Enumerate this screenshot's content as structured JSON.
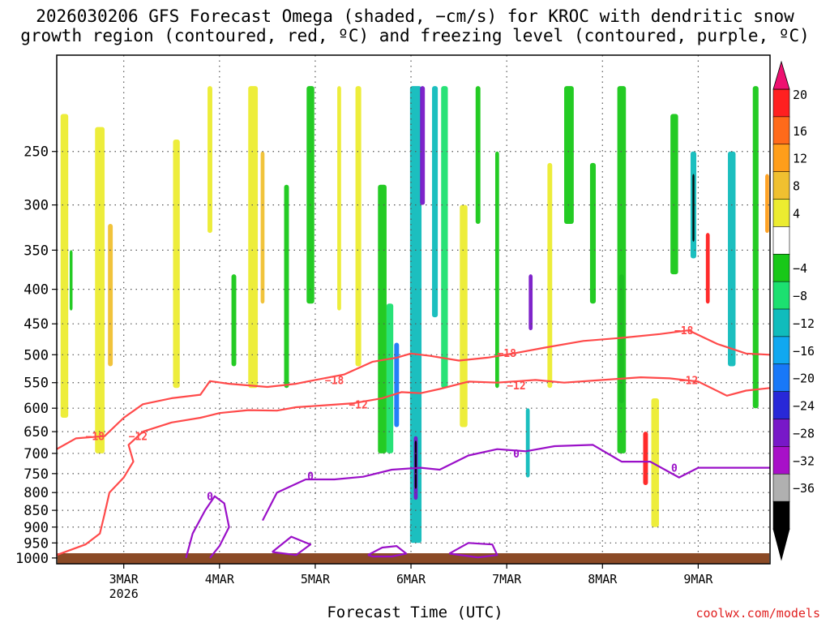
{
  "title_line1": "2026030206 GFS Forecast Omega (shaded, −cm/s) for KROC with dendritic snow",
  "title_line2": "growth region (contoured, red, ºC) and freezing level (contoured, purple, ºC)",
  "xlabel": "Forecast Time (UTC)",
  "credit": "coolwx.com/models",
  "colors": {
    "ground": "#8b4a26",
    "dgz": "#ff4a4a",
    "freezing": "#9a10c8",
    "grid": "#555555"
  },
  "chart_data": {
    "type": "heatmap",
    "title": "2026030206 GFS Forecast Omega (shaded, −cm/s) for KROC with dendritic snow growth region (contoured, red, ºC) and freezing level (contoured, purple, ºC)",
    "xlabel": "Forecast Time (UTC)",
    "ylabel": "",
    "x_range_days": [
      2.3,
      9.75
    ],
    "y_pressure_range_hPa": [
      1020,
      180
    ],
    "y_ticks": [
      250,
      300,
      350,
      400,
      450,
      500,
      550,
      600,
      650,
      700,
      750,
      800,
      850,
      900,
      950,
      1000
    ],
    "x_ticks": [
      {
        "label": "3MAR",
        "sublabel": "2026",
        "day": 3
      },
      {
        "label": "4MAR",
        "sublabel": "",
        "day": 4
      },
      {
        "label": "5MAR",
        "sublabel": "",
        "day": 5
      },
      {
        "label": "6MAR",
        "sublabel": "",
        "day": 6
      },
      {
        "label": "7MAR",
        "sublabel": "",
        "day": 7
      },
      {
        "label": "8MAR",
        "sublabel": "",
        "day": 8
      },
      {
        "label": "9MAR",
        "sublabel": "",
        "day": 9
      }
    ],
    "colorbar": {
      "labels": [
        "20",
        "16",
        "12",
        "8",
        "4",
        "−4",
        "−8",
        "−12",
        "−16",
        "−20",
        "−24",
        "−28",
        "−32",
        "−36"
      ],
      "colors": [
        "#ff2020",
        "#ff6a1a",
        "#ff9e1a",
        "#f0c030",
        "#ecec30",
        "#ffffff",
        "#18c818",
        "#1ce070",
        "#10bcbc",
        "#10a8f0",
        "#1878f8",
        "#2828d8",
        "#7818c8",
        "#a810c8",
        "#b0b0b0",
        "#000000"
      ],
      "top_arrow": "#ee1170",
      "bottom_arrow": "#000000"
    },
    "shading_columns": [
      {
        "day": 2.38,
        "p_top": 220,
        "p_bot": 620,
        "w": 0.08,
        "c": "#ecec30"
      },
      {
        "day": 2.45,
        "p_top": 350,
        "p_bot": 430,
        "w": 0.03,
        "c": "#18c818"
      },
      {
        "day": 2.75,
        "p_top": 230,
        "p_bot": 700,
        "w": 0.1,
        "c": "#ecec30"
      },
      {
        "day": 2.86,
        "p_top": 320,
        "p_bot": 520,
        "w": 0.05,
        "c": "#f0c030"
      },
      {
        "day": 3.55,
        "p_top": 240,
        "p_bot": 560,
        "w": 0.07,
        "c": "#ecec30"
      },
      {
        "day": 3.9,
        "p_top": 200,
        "p_bot": 330,
        "w": 0.05,
        "c": "#ecec30"
      },
      {
        "day": 4.15,
        "p_top": 380,
        "p_bot": 520,
        "w": 0.05,
        "c": "#18c818"
      },
      {
        "day": 4.35,
        "p_top": 200,
        "p_bot": 560,
        "w": 0.1,
        "c": "#ecec30"
      },
      {
        "day": 4.45,
        "p_top": 250,
        "p_bot": 420,
        "w": 0.04,
        "c": "#f0c030"
      },
      {
        "day": 4.7,
        "p_top": 280,
        "p_bot": 560,
        "w": 0.05,
        "c": "#18c818"
      },
      {
        "day": 4.95,
        "p_top": 200,
        "p_bot": 420,
        "w": 0.08,
        "c": "#18c818"
      },
      {
        "day": 5.25,
        "p_top": 200,
        "p_bot": 430,
        "w": 0.04,
        "c": "#ecec30"
      },
      {
        "day": 5.45,
        "p_top": 200,
        "p_bot": 520,
        "w": 0.06,
        "c": "#ecec30"
      },
      {
        "day": 5.7,
        "p_top": 280,
        "p_bot": 700,
        "w": 0.09,
        "c": "#18c818"
      },
      {
        "day": 5.78,
        "p_top": 420,
        "p_bot": 700,
        "w": 0.07,
        "c": "#1ce070"
      },
      {
        "day": 5.85,
        "p_top": 480,
        "p_bot": 640,
        "w": 0.05,
        "c": "#1878f8"
      },
      {
        "day": 6.05,
        "p_top": 200,
        "p_bot": 950,
        "w": 0.12,
        "c": "#10bcbc"
      },
      {
        "day": 6.05,
        "p_top": 660,
        "p_bot": 820,
        "w": 0.04,
        "c": "#7818c8"
      },
      {
        "day": 6.05,
        "p_top": 670,
        "p_bot": 790,
        "w": 0.02,
        "c": "#000000"
      },
      {
        "day": 6.12,
        "p_top": 200,
        "p_bot": 300,
        "w": 0.05,
        "c": "#7818c8"
      },
      {
        "day": 6.25,
        "p_top": 200,
        "p_bot": 440,
        "w": 0.06,
        "c": "#10bcbc"
      },
      {
        "day": 6.35,
        "p_top": 200,
        "p_bot": 560,
        "w": 0.07,
        "c": "#1ce070"
      },
      {
        "day": 6.55,
        "p_top": 300,
        "p_bot": 640,
        "w": 0.08,
        "c": "#ecec30"
      },
      {
        "day": 6.7,
        "p_top": 200,
        "p_bot": 320,
        "w": 0.05,
        "c": "#18c818"
      },
      {
        "day": 6.9,
        "p_top": 250,
        "p_bot": 560,
        "w": 0.04,
        "c": "#18c818"
      },
      {
        "day": 7.25,
        "p_top": 380,
        "p_bot": 460,
        "w": 0.04,
        "c": "#7818c8"
      },
      {
        "day": 7.22,
        "p_top": 600,
        "p_bot": 760,
        "w": 0.04,
        "c": "#10bcbc"
      },
      {
        "day": 7.45,
        "p_top": 260,
        "p_bot": 560,
        "w": 0.05,
        "c": "#ecec30"
      },
      {
        "day": 7.65,
        "p_top": 200,
        "p_bot": 320,
        "w": 0.1,
        "c": "#18c818"
      },
      {
        "day": 7.9,
        "p_top": 260,
        "p_bot": 420,
        "w": 0.06,
        "c": "#18c818"
      },
      {
        "day": 8.2,
        "p_top": 380,
        "p_bot": 590,
        "w": 0.05,
        "c": "#7818c8"
      },
      {
        "day": 8.2,
        "p_top": 200,
        "p_bot": 700,
        "w": 0.09,
        "c": "#18c818"
      },
      {
        "day": 8.45,
        "p_top": 650,
        "p_bot": 780,
        "w": 0.05,
        "c": "#ff2020"
      },
      {
        "day": 8.55,
        "p_top": 580,
        "p_bot": 900,
        "w": 0.08,
        "c": "#ecec30"
      },
      {
        "day": 8.75,
        "p_top": 220,
        "p_bot": 380,
        "w": 0.08,
        "c": "#18c818"
      },
      {
        "day": 8.95,
        "p_top": 250,
        "p_bot": 360,
        "w": 0.06,
        "c": "#10bcbc"
      },
      {
        "day": 8.95,
        "p_top": 270,
        "p_bot": 340,
        "w": 0.02,
        "c": "#000000"
      },
      {
        "day": 9.1,
        "p_top": 330,
        "p_bot": 420,
        "w": 0.04,
        "c": "#ff2020"
      },
      {
        "day": 9.35,
        "p_top": 250,
        "p_bot": 520,
        "w": 0.08,
        "c": "#10bcbc"
      },
      {
        "day": 9.6,
        "p_top": 200,
        "p_bot": 600,
        "w": 0.06,
        "c": "#18c818"
      },
      {
        "day": 9.72,
        "p_top": 270,
        "p_bot": 330,
        "w": 0.04,
        "c": "#ff9e1a"
      }
    ],
    "dgz_contours": [
      {
        "label": "−18",
        "label_pos": [
          {
            "day": 2.7,
            "p": 660
          },
          {
            "day": 5.2,
            "p": 545
          },
          {
            "day": 7.0,
            "p": 497
          },
          {
            "day": 8.85,
            "p": 460
          }
        ],
        "points": [
          [
            2.3,
            690
          ],
          [
            2.5,
            665
          ],
          [
            2.8,
            660
          ],
          [
            3.0,
            620
          ],
          [
            3.2,
            592
          ],
          [
            3.5,
            580
          ],
          [
            3.8,
            573
          ],
          [
            3.9,
            547
          ],
          [
            4.1,
            552
          ],
          [
            4.5,
            558
          ],
          [
            4.8,
            552
          ],
          [
            5.0,
            545
          ],
          [
            5.3,
            535
          ],
          [
            5.6,
            512
          ],
          [
            5.85,
            505
          ],
          [
            6.0,
            498
          ],
          [
            6.2,
            502
          ],
          [
            6.5,
            510
          ],
          [
            6.8,
            505
          ],
          [
            7.1,
            497
          ],
          [
            7.4,
            488
          ],
          [
            7.8,
            477
          ],
          [
            8.2,
            472
          ],
          [
            8.6,
            466
          ],
          [
            8.9,
            460
          ],
          [
            9.2,
            482
          ],
          [
            9.5,
            498
          ],
          [
            9.75,
            500
          ]
        ]
      },
      {
        "label": "−12",
        "label_pos": [
          {
            "day": 3.15,
            "p": 660
          },
          {
            "day": 5.45,
            "p": 592
          },
          {
            "day": 7.1,
            "p": 555
          },
          {
            "day": 8.9,
            "p": 545
          }
        ],
        "points": [
          [
            2.3,
            990
          ],
          [
            2.6,
            955
          ],
          [
            2.75,
            920
          ],
          [
            2.8,
            860
          ],
          [
            2.85,
            800
          ],
          [
            3.0,
            760
          ],
          [
            3.1,
            720
          ],
          [
            3.05,
            680
          ],
          [
            3.2,
            650
          ],
          [
            3.5,
            630
          ],
          [
            3.8,
            620
          ],
          [
            4.0,
            610
          ],
          [
            4.3,
            604
          ],
          [
            4.6,
            605
          ],
          [
            4.8,
            598
          ],
          [
            5.1,
            594
          ],
          [
            5.4,
            590
          ],
          [
            5.7,
            580
          ],
          [
            5.9,
            568
          ],
          [
            6.1,
            570
          ],
          [
            6.3,
            562
          ],
          [
            6.6,
            548
          ],
          [
            6.9,
            550
          ],
          [
            7.3,
            545
          ],
          [
            7.6,
            550
          ],
          [
            8.0,
            545
          ],
          [
            8.4,
            540
          ],
          [
            8.7,
            542
          ],
          [
            9.0,
            548
          ],
          [
            9.3,
            575
          ],
          [
            9.5,
            565
          ],
          [
            9.75,
            560
          ]
        ]
      }
    ],
    "freezing_contours": [
      {
        "label": "0",
        "label_pos": [
          {
            "day": 4.95,
            "p": 755
          },
          {
            "day": 7.1,
            "p": 700
          },
          {
            "day": 8.75,
            "p": 735
          }
        ],
        "points": [
          [
            4.45,
            880
          ],
          [
            4.6,
            800
          ],
          [
            4.9,
            765
          ],
          [
            5.2,
            765
          ],
          [
            5.5,
            758
          ],
          [
            5.8,
            740
          ],
          [
            6.1,
            735
          ],
          [
            6.3,
            740
          ],
          [
            6.6,
            705
          ],
          [
            6.9,
            690
          ],
          [
            7.2,
            695
          ],
          [
            7.5,
            683
          ],
          [
            7.9,
            680
          ],
          [
            8.2,
            720
          ],
          [
            8.5,
            720
          ],
          [
            8.8,
            760
          ],
          [
            9.0,
            735
          ],
          [
            9.3,
            735
          ],
          [
            9.75,
            735
          ]
        ]
      },
      {
        "label": "0",
        "label_pos": [
          {
            "day": 3.9,
            "p": 810
          }
        ],
        "points": [
          [
            3.65,
            1000
          ],
          [
            3.72,
            920
          ],
          [
            3.85,
            850
          ],
          [
            3.95,
            810
          ],
          [
            4.05,
            830
          ],
          [
            4.1,
            900
          ],
          [
            4.0,
            960
          ],
          [
            3.9,
            1000
          ]
        ]
      },
      {
        "label": "",
        "label_pos": [],
        "points": [
          [
            5.55,
            990
          ],
          [
            5.7,
            965
          ],
          [
            5.85,
            960
          ],
          [
            5.95,
            985
          ],
          [
            5.8,
            995
          ],
          [
            5.6,
            995
          ],
          [
            5.55,
            990
          ]
        ]
      },
      {
        "label": "",
        "label_pos": [],
        "points": [
          [
            6.4,
            985
          ],
          [
            6.6,
            950
          ],
          [
            6.85,
            955
          ],
          [
            6.9,
            990
          ],
          [
            6.7,
            998
          ],
          [
            6.4,
            985
          ]
        ]
      },
      {
        "label": "",
        "label_pos": [],
        "points": [
          [
            4.55,
            980
          ],
          [
            4.75,
            930
          ],
          [
            4.95,
            955
          ],
          [
            4.8,
            990
          ],
          [
            4.55,
            980
          ]
        ]
      }
    ]
  }
}
